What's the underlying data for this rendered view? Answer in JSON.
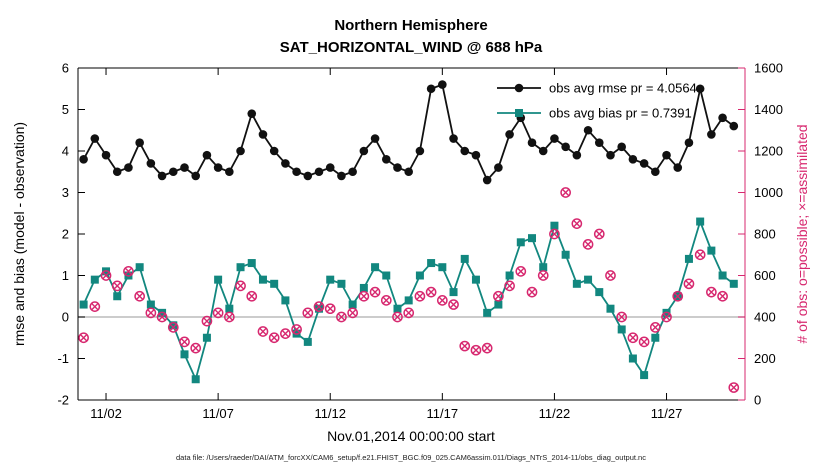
{
  "caption": "data file: /Users/raeder/DAI/ATM_forcXX/CAM6_setup/f.e21.FHIST_BGC.f09_025.CAM6assim.011/Diags_NTrS_2014-11/obs_diag_output.nc",
  "chart_data": {
    "type": "line",
    "title": "Northern Hemisphere",
    "subtitle": "SAT_HORIZONTAL_WIND @ 688 hPa",
    "xlabel": "Nov.01,2014 00:00:00 start",
    "ylabel_left": "rmse and bias (model - observation)",
    "ylabel_right": "# of obs: o=possible; ×=assimilated",
    "xlim_days": [
      0.75,
      30.5
    ],
    "xticks": {
      "days": [
        2,
        7,
        12,
        17,
        22,
        27
      ],
      "labels": [
        "11/02",
        "11/07",
        "11/12",
        "11/17",
        "11/22",
        "11/27"
      ]
    },
    "ylim_left": [
      -2,
      6
    ],
    "yticks_left": [
      -2,
      -1,
      0,
      1,
      2,
      3,
      4,
      5,
      6
    ],
    "ylim_right": [
      0,
      1600
    ],
    "yticks_right": [
      0,
      200,
      400,
      600,
      800,
      1000,
      1200,
      1400,
      1600
    ],
    "zero_line_value": 0,
    "grid": false,
    "legend_position": "top-right-inside",
    "colors": {
      "axis_left": "#000000",
      "axis_right": "#d7286f",
      "rmse": "#111111",
      "bias": "#12877f",
      "obs": "#d7286f",
      "zero_line": "#bbbbbb"
    },
    "x_days": [
      1,
      1.5,
      2,
      2.5,
      3,
      3.5,
      4,
      4.5,
      5,
      5.5,
      6,
      6.5,
      7,
      7.5,
      8,
      8.5,
      9,
      9.5,
      10,
      10.5,
      11,
      11.5,
      12,
      12.5,
      13,
      13.5,
      14,
      14.5,
      15,
      15.5,
      16,
      16.5,
      17,
      17.5,
      18,
      18.5,
      19,
      19.5,
      20,
      20.5,
      21,
      21.5,
      22,
      22.5,
      23,
      23.5,
      24,
      24.5,
      25,
      25.5,
      26,
      26.5,
      27,
      27.5,
      28,
      28.5,
      29,
      29.5,
      30
    ],
    "series": [
      {
        "id": "rmse",
        "name": "obs avg rmse pr = 4.0564",
        "axis": "left",
        "marker": "filled-circle",
        "line": true,
        "color": "#111111",
        "values": [
          3.8,
          4.3,
          3.9,
          3.5,
          3.6,
          4.2,
          3.7,
          3.4,
          3.5,
          3.6,
          3.4,
          3.9,
          3.6,
          3.5,
          4.0,
          4.9,
          4.4,
          4.0,
          3.7,
          3.5,
          3.4,
          3.5,
          3.6,
          3.4,
          3.5,
          4.0,
          4.3,
          3.8,
          3.6,
          3.5,
          4.0,
          5.5,
          5.6,
          4.3,
          4.0,
          3.9,
          3.3,
          3.6,
          4.4,
          4.8,
          4.2,
          4.0,
          4.3,
          4.1,
          3.9,
          4.5,
          4.2,
          3.9,
          4.1,
          3.8,
          3.7,
          3.5,
          3.9,
          3.6,
          4.2,
          5.5,
          4.4,
          4.8,
          4.6
        ]
      },
      {
        "id": "bias",
        "name": "obs avg bias pr = 0.7391",
        "axis": "left",
        "marker": "filled-square",
        "line": true,
        "color": "#12877f",
        "values": [
          0.3,
          0.9,
          1.1,
          0.5,
          1.0,
          1.2,
          0.3,
          0.1,
          -0.2,
          -0.9,
          -1.5,
          -0.5,
          0.9,
          0.2,
          1.2,
          1.3,
          0.9,
          0.8,
          0.4,
          -0.4,
          -0.6,
          0.2,
          0.9,
          0.8,
          0.3,
          0.7,
          1.2,
          1.0,
          0.2,
          0.4,
          1.0,
          1.3,
          1.2,
          0.6,
          1.4,
          0.9,
          0.1,
          0.3,
          1.0,
          1.8,
          1.9,
          1.2,
          2.2,
          1.5,
          0.8,
          0.9,
          0.6,
          0.2,
          -0.3,
          -1.0,
          -1.4,
          -0.5,
          0.1,
          0.5,
          1.4,
          2.3,
          1.6,
          1.0,
          0.8
        ]
      },
      {
        "id": "possible",
        "name": "o=possible",
        "axis": "right",
        "marker": "open-circle",
        "line": false,
        "color": "#d7286f",
        "values": [
          300,
          450,
          600,
          550,
          620,
          500,
          420,
          400,
          350,
          280,
          250,
          380,
          420,
          400,
          550,
          500,
          330,
          300,
          320,
          340,
          420,
          450,
          440,
          400,
          420,
          500,
          520,
          480,
          400,
          420,
          500,
          520,
          480,
          460,
          260,
          240,
          250,
          500,
          550,
          620,
          520,
          600,
          800,
          1000,
          850,
          750,
          800,
          600,
          400,
          300,
          280,
          350,
          400,
          500,
          560,
          700,
          520,
          500,
          60
        ]
      },
      {
        "id": "assimilated",
        "name": "×=assimilated",
        "axis": "right",
        "marker": "x",
        "line": false,
        "color": "#d7286f",
        "values": [
          300,
          450,
          600,
          550,
          620,
          500,
          420,
          400,
          350,
          280,
          250,
          380,
          420,
          400,
          550,
          500,
          330,
          300,
          320,
          340,
          420,
          450,
          440,
          400,
          420,
          500,
          520,
          480,
          400,
          420,
          500,
          520,
          480,
          460,
          260,
          240,
          250,
          500,
          550,
          620,
          520,
          600,
          800,
          1000,
          850,
          750,
          800,
          600,
          400,
          300,
          280,
          350,
          400,
          500,
          560,
          700,
          520,
          500,
          60
        ]
      }
    ],
    "legend": {
      "entries": [
        {
          "series": "rmse",
          "label": "obs avg rmse pr = 4.0564"
        },
        {
          "series": "bias",
          "label": "obs avg bias pr = 0.7391"
        }
      ]
    }
  }
}
